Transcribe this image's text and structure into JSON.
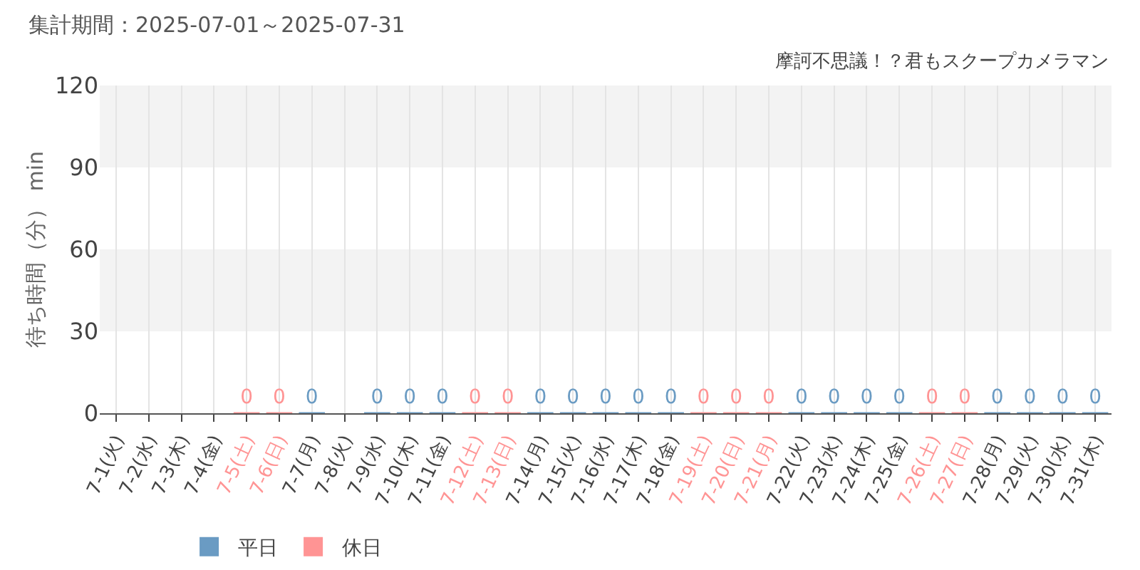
{
  "chart_data": {
    "type": "bar",
    "title": "集計期間：2025-07-01～2025-07-31",
    "subtitle": "摩訶不思議！？君もスクープカメラマン",
    "ylabel": "待ち時間（分） min",
    "categories": [
      "7-1(火)",
      "7-2(水)",
      "7-3(木)",
      "7-4(金)",
      "7-5(土)",
      "7-6(日)",
      "7-7(月)",
      "7-8(火)",
      "7-9(水)",
      "7-10(木)",
      "7-11(金)",
      "7-12(土)",
      "7-13(日)",
      "7-14(月)",
      "7-15(火)",
      "7-16(水)",
      "7-17(木)",
      "7-18(金)",
      "7-19(土)",
      "7-20(日)",
      "7-21(月)",
      "7-22(火)",
      "7-23(水)",
      "7-24(木)",
      "7-25(金)",
      "7-26(土)",
      "7-27(日)",
      "7-28(月)",
      "7-29(火)",
      "7-30(水)",
      "7-31(木)"
    ],
    "series": [
      {
        "name": "平日",
        "color": "#6a9bc3",
        "values": [
          null,
          null,
          null,
          null,
          null,
          null,
          0,
          null,
          0,
          0,
          0,
          null,
          null,
          0,
          0,
          0,
          0,
          0,
          null,
          null,
          null,
          0,
          0,
          0,
          0,
          null,
          null,
          0,
          0,
          0,
          0
        ]
      },
      {
        "name": "休日",
        "color": "#ff9494",
        "values": [
          null,
          null,
          null,
          null,
          0,
          0,
          null,
          null,
          null,
          null,
          null,
          0,
          0,
          null,
          null,
          null,
          null,
          null,
          0,
          0,
          0,
          null,
          null,
          null,
          null,
          0,
          0,
          null,
          null,
          null,
          null
        ]
      }
    ],
    "ylim": [
      0,
      120
    ],
    "yticks": [
      0,
      30,
      60,
      90,
      120
    ],
    "grid": true,
    "legend": "bottom left",
    "data_labels": true
  }
}
